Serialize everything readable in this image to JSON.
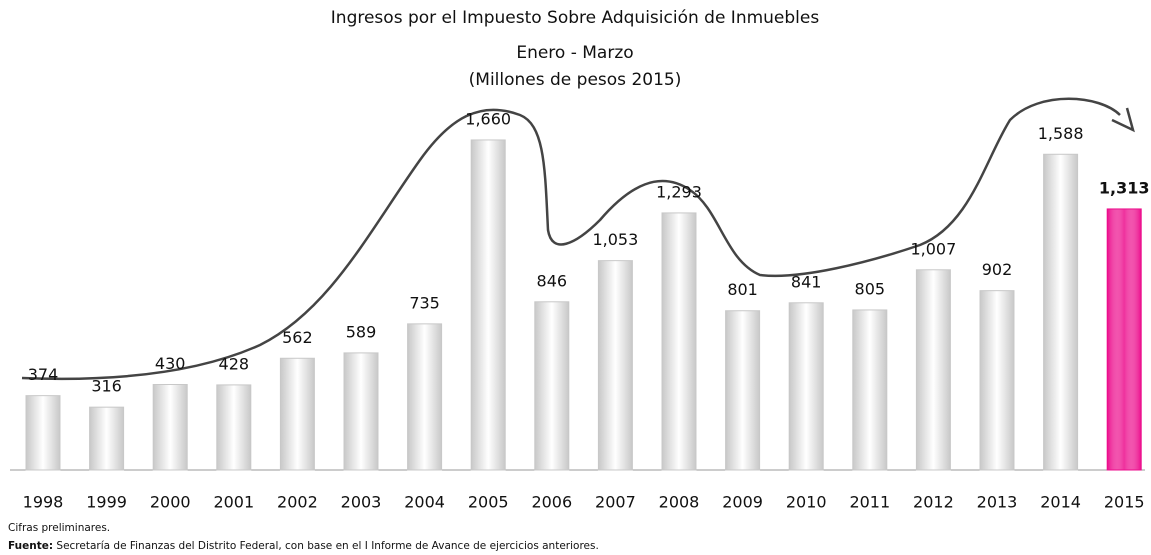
{
  "chart_data": {
    "type": "bar",
    "title": "Ingresos por el Impuesto Sobre Adquisición de Inmuebles",
    "subtitle": "Enero - Marzo",
    "subtitle2": "(Millones de pesos 2015)",
    "categories": [
      "1998",
      "1999",
      "2000",
      "2001",
      "2002",
      "2003",
      "2004",
      "2005",
      "2006",
      "2007",
      "2008",
      "2009",
      "2010",
      "2011",
      "2012",
      "2013",
      "2014",
      "2015"
    ],
    "values": [
      374,
      316,
      430,
      428,
      562,
      589,
      735,
      1660,
      846,
      1053,
      1293,
      801,
      841,
      805,
      1007,
      902,
      1588,
      1313
    ],
    "value_labels": [
      "374",
      "316",
      "430",
      "428",
      "562",
      "589",
      "735",
      "1,660",
      "846",
      "1,053",
      "1,293",
      "801",
      "841",
      "805",
      "1,007",
      "902",
      "1,588",
      "1,313"
    ],
    "colors": [
      "#c8c8c8",
      "#c8c8c8",
      "#c8c8c8",
      "#c8c8c8",
      "#c8c8c8",
      "#c8c8c8",
      "#c8c8c8",
      "#c8c8c8",
      "#c8c8c8",
      "#c8c8c8",
      "#c8c8c8",
      "#c8c8c8",
      "#c8c8c8",
      "#c8c8c8",
      "#c8c8c8",
      "#c8c8c8",
      "#c8c8c8",
      "#ec0c8c"
    ],
    "ylim": [
      0,
      1700
    ],
    "note": "Cifras preliminares.",
    "source_label": "Fuente:",
    "source": " Secretaría de Finanzas del Distrito Federal, con base en el I Informe de Avance de ejercicios anteriores."
  }
}
